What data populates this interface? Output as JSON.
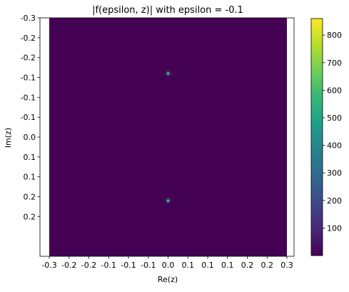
{
  "chart_data": {
    "type": "heatmap",
    "title": "|f(epsilon, z)| with epsilon = -0.1",
    "xlabel": "Re(z)",
    "ylabel": "Im(z)",
    "xlim": [
      -0.3,
      0.3
    ],
    "ylim": [
      -0.3,
      0.3
    ],
    "x_ticks": [
      -0.3,
      -0.25,
      -0.2,
      -0.15,
      -0.1,
      -0.05,
      0.0,
      0.05,
      0.1,
      0.15,
      0.2,
      0.25,
      0.3
    ],
    "x_tick_labels": [
      "-0.3",
      "-0.2",
      "-0.2",
      "-0.1",
      "-0.1",
      "-0.1",
      "0.0",
      "0.1",
      "0.1",
      "0.1",
      "0.2",
      "0.2",
      "0.3"
    ],
    "y_ticks": [
      -0.3,
      -0.25,
      -0.2,
      -0.15,
      -0.1,
      -0.05,
      0.0,
      0.05,
      0.1,
      0.15,
      0.2
    ],
    "y_tick_labels": [
      "-0.3",
      "-0.2",
      "-0.2",
      "-0.1",
      "-0.1",
      "-0.1",
      "0.0",
      "0.1",
      "0.1",
      "0.2",
      "0.2"
    ],
    "y_axis_inverted": true,
    "peaks": [
      {
        "x": 0.0,
        "y": -0.16,
        "value": 420
      },
      {
        "x": 0.0,
        "y": 0.16,
        "value": 420
      }
    ],
    "background_value": 10,
    "colorbar": {
      "colormap": "viridis",
      "range": [
        0,
        860
      ],
      "ticks": [
        100,
        200,
        300,
        400,
        500,
        600,
        700,
        800
      ],
      "tick_labels": [
        "100",
        "200",
        "300",
        "400",
        "500",
        "600",
        "700",
        "800"
      ]
    },
    "colors": {
      "background": "#440154",
      "peak": "#21918c"
    },
    "grid": false
  }
}
